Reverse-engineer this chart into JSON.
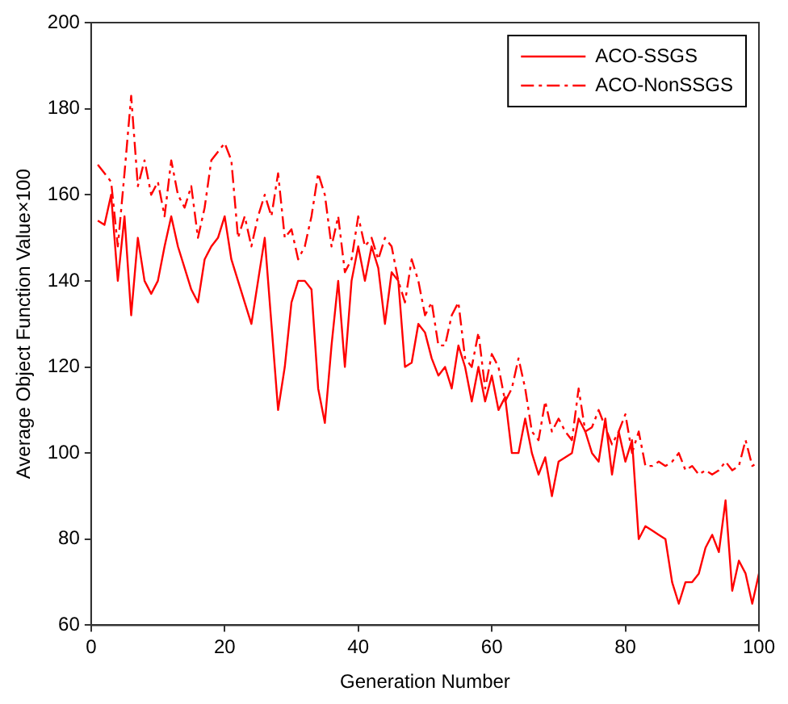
{
  "chart_data": {
    "type": "line",
    "xlabel": "Generation Number",
    "ylabel": "Average Object Function Value×100",
    "x": [
      1,
      2,
      3,
      4,
      5,
      6,
      7,
      8,
      9,
      10,
      11,
      12,
      13,
      14,
      15,
      16,
      17,
      18,
      19,
      20,
      21,
      22,
      23,
      24,
      25,
      26,
      27,
      28,
      29,
      30,
      31,
      32,
      33,
      34,
      35,
      36,
      37,
      38,
      39,
      40,
      41,
      42,
      43,
      44,
      45,
      46,
      47,
      48,
      49,
      50,
      51,
      52,
      53,
      54,
      55,
      56,
      57,
      58,
      59,
      60,
      61,
      62,
      63,
      64,
      65,
      66,
      67,
      68,
      69,
      70,
      71,
      72,
      73,
      74,
      75,
      76,
      77,
      78,
      79,
      80,
      81,
      82,
      83,
      84,
      85,
      86,
      87,
      88,
      89,
      90,
      91,
      92,
      93,
      94,
      95,
      96,
      97,
      98,
      99,
      100
    ],
    "series": [
      {
        "name": "ACO-SSGS",
        "color": "#ff0000",
        "line_style": "solid",
        "values": [
          154,
          153,
          160,
          140,
          155,
          132,
          150,
          140,
          137,
          140,
          148,
          155,
          148,
          143,
          138,
          135,
          145,
          148,
          150,
          155,
          145,
          140,
          135,
          130,
          140,
          150,
          130,
          110,
          120,
          135,
          140,
          140,
          138,
          115,
          107,
          125,
          140,
          120,
          140,
          148,
          140,
          148,
          143,
          130,
          142,
          140,
          120,
          121,
          130,
          128,
          122,
          118,
          120,
          115,
          125,
          120,
          112,
          120,
          112,
          118,
          110,
          113,
          100,
          100,
          108,
          100,
          95,
          99,
          90,
          98,
          99,
          100,
          108,
          105,
          100,
          98,
          108,
          95,
          105,
          98,
          103,
          80,
          83,
          82,
          81,
          80,
          70,
          65,
          70,
          70,
          72,
          78,
          81,
          77,
          89,
          68,
          75,
          72,
          65,
          72
        ]
      },
      {
        "name": "ACO-NonSSGS",
        "color": "#ff0000",
        "line_style": "dashed",
        "values": [
          167,
          165,
          163,
          148,
          165,
          183,
          162,
          168,
          160,
          163,
          155,
          168,
          160,
          157,
          162,
          150,
          157,
          168,
          170,
          172,
          168,
          150,
          155,
          148,
          155,
          160,
          155,
          165,
          150,
          152,
          145,
          148,
          155,
          165,
          160,
          148,
          155,
          142,
          145,
          155,
          148,
          150,
          145,
          150,
          148,
          140,
          135,
          145,
          140,
          132,
          135,
          125,
          125,
          132,
          135,
          122,
          120,
          128,
          115,
          123,
          120,
          112,
          115,
          122,
          115,
          105,
          103,
          112,
          105,
          108,
          105,
          103,
          115,
          105,
          106,
          110,
          106,
          102,
          105,
          109,
          100,
          105,
          97,
          97,
          98,
          97,
          98,
          100,
          96,
          97,
          95,
          96,
          95,
          96,
          98,
          96,
          97,
          103,
          97,
          98
        ]
      }
    ],
    "xlim": [
      0,
      100
    ],
    "xticks": [
      0,
      20,
      40,
      60,
      80,
      100
    ],
    "ylim": [
      60,
      200
    ],
    "yticks": [
      60,
      80,
      100,
      120,
      140,
      160,
      180,
      200
    ],
    "grid": false,
    "legend": "top right",
    "marker": "none"
  }
}
